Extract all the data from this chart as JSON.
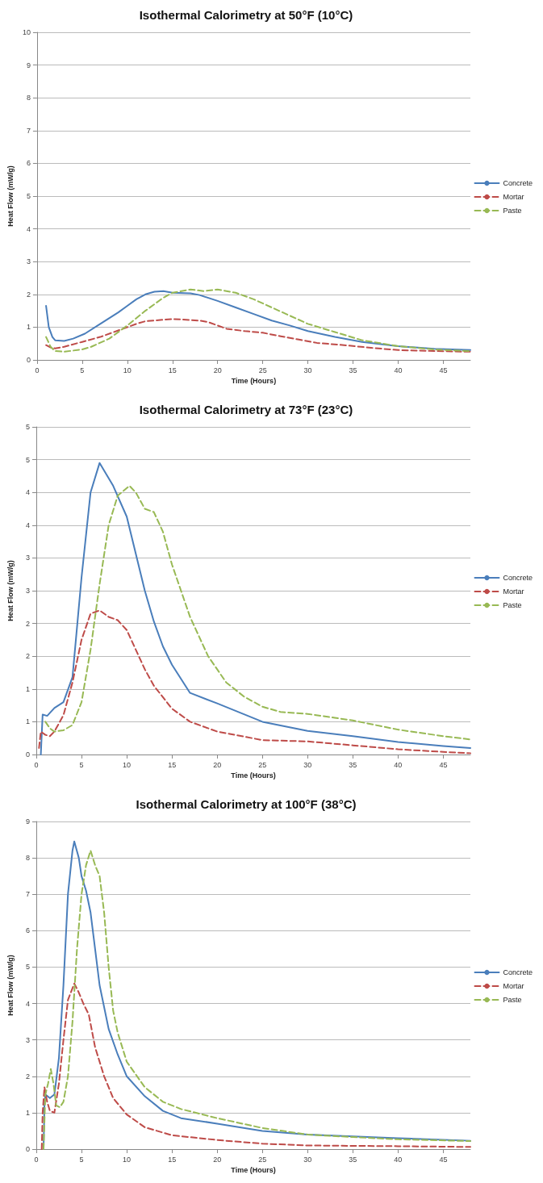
{
  "chart_data": [
    {
      "type": "line",
      "title": "Isothermal Calorimetry at 50°F (10°C)",
      "xlabel": "Time (Hours)",
      "ylabel": "Heat Flow (mW/g)",
      "xlim": [
        0,
        48
      ],
      "xticks": [
        0,
        5,
        10,
        15,
        20,
        25,
        30,
        35,
        40,
        45
      ],
      "ylim": [
        0,
        10
      ],
      "yticks": [
        0,
        1,
        2,
        3,
        4,
        5,
        6,
        7,
        8,
        9,
        10
      ],
      "grid": "y",
      "legend": "right",
      "marker": "none",
      "series": [
        {
          "name": "Concrete",
          "color": "#4a7ebb",
          "line_style": "solid",
          "x": [
            1,
            1.3,
            1.7,
            2,
            3,
            4,
            5.3,
            7,
            9,
            10,
            11,
            12,
            13,
            14,
            15,
            17,
            18,
            20,
            22,
            24,
            26,
            28,
            30,
            33,
            36,
            40,
            44,
            48
          ],
          "values": [
            1.65,
            1.0,
            0.7,
            0.6,
            0.58,
            0.65,
            0.8,
            1.1,
            1.45,
            1.65,
            1.85,
            2.0,
            2.08,
            2.1,
            2.05,
            2.03,
            1.98,
            1.8,
            1.6,
            1.4,
            1.2,
            1.05,
            0.88,
            0.7,
            0.55,
            0.42,
            0.34,
            0.3
          ]
        },
        {
          "name": "Mortar",
          "color": "#be4b48",
          "line_style": "dashed",
          "x": [
            1,
            1.5,
            2,
            3,
            5,
            7,
            9,
            11,
            12,
            15,
            18,
            19,
            20,
            21,
            23,
            25,
            27,
            29,
            31,
            34,
            37,
            40,
            44,
            48
          ],
          "values": [
            0.45,
            0.38,
            0.35,
            0.4,
            0.55,
            0.7,
            0.9,
            1.1,
            1.18,
            1.25,
            1.2,
            1.15,
            1.05,
            0.95,
            0.88,
            0.83,
            0.72,
            0.62,
            0.52,
            0.45,
            0.37,
            0.3,
            0.27,
            0.25
          ]
        },
        {
          "name": "Paste",
          "color": "#98b954",
          "line_style": "dashed",
          "x": [
            1,
            1.5,
            2,
            3,
            5,
            6,
            8,
            10,
            12,
            14,
            15,
            17,
            18.5,
            20,
            22,
            24,
            26,
            28,
            30,
            33,
            36,
            40,
            44,
            48
          ],
          "values": [
            0.7,
            0.4,
            0.27,
            0.25,
            0.32,
            0.4,
            0.65,
            1.05,
            1.5,
            1.9,
            2.05,
            2.15,
            2.1,
            2.15,
            2.05,
            1.85,
            1.6,
            1.35,
            1.1,
            0.85,
            0.6,
            0.42,
            0.32,
            0.27
          ]
        }
      ]
    },
    {
      "type": "line",
      "title": "Isothermal Calorimetry at 73°F (23°C)",
      "xlabel": "Time (Hours)",
      "ylabel": "Heat Flow (mW/g)",
      "xlim": [
        0,
        48
      ],
      "xticks": [
        0,
        5,
        10,
        15,
        20,
        25,
        30,
        35,
        40,
        45
      ],
      "ylim": [
        0,
        5
      ],
      "yticks": [
        0,
        {
          "value": 0.5,
          "label": "1"
        },
        1,
        {
          "value": 1.5,
          "label": "2"
        },
        2,
        {
          "value": 2.5,
          "label": "3"
        },
        3,
        {
          "value": 3.5,
          "label": "4"
        },
        4,
        {
          "value": 4.5,
          "label": "5"
        },
        5
      ],
      "grid": "y",
      "legend": "right",
      "marker": "none",
      "series": [
        {
          "name": "Concrete",
          "color": "#4a7ebb",
          "line_style": "solid",
          "x": [
            0.5,
            0.7,
            1.2,
            2,
            3,
            4,
            5,
            6,
            7,
            8.5,
            10,
            12,
            13,
            14,
            15,
            17,
            20,
            25,
            30,
            35,
            40,
            45,
            48
          ],
          "values": [
            0,
            0.61,
            0.59,
            0.71,
            0.8,
            1.18,
            2.7,
            4.0,
            4.45,
            4.1,
            3.63,
            2.5,
            2.03,
            1.65,
            1.37,
            0.94,
            0.78,
            0.5,
            0.36,
            0.28,
            0.19,
            0.13,
            0.1
          ]
        },
        {
          "name": "Mortar",
          "color": "#be4b48",
          "line_style": "dashed",
          "x": [
            0.3,
            0.5,
            1,
            1.5,
            2,
            3,
            4,
            5,
            6,
            7,
            8,
            9,
            10,
            11,
            12,
            13,
            15,
            17,
            20,
            25,
            30,
            35,
            40,
            45,
            48
          ],
          "values": [
            0.1,
            0.35,
            0.3,
            0.28,
            0.35,
            0.6,
            1.1,
            1.75,
            2.15,
            2.2,
            2.1,
            2.05,
            1.9,
            1.6,
            1.3,
            1.05,
            0.7,
            0.5,
            0.35,
            0.22,
            0.2,
            0.14,
            0.08,
            0.04,
            0.02
          ]
        },
        {
          "name": "Paste",
          "color": "#98b954",
          "line_style": "dashed",
          "x": [
            1,
            1.5,
            2,
            3,
            4,
            5,
            6,
            7,
            8,
            9,
            10.3,
            11,
            12,
            13,
            14,
            15,
            16,
            17,
            19,
            21,
            23,
            25,
            27,
            30,
            33,
            35,
            40,
            45,
            48
          ],
          "values": [
            0.5,
            0.4,
            0.35,
            0.37,
            0.45,
            0.8,
            1.6,
            2.6,
            3.5,
            3.95,
            4.1,
            4.0,
            3.75,
            3.7,
            3.4,
            2.9,
            2.5,
            2.1,
            1.5,
            1.1,
            0.88,
            0.73,
            0.65,
            0.62,
            0.56,
            0.52,
            0.38,
            0.28,
            0.23
          ]
        }
      ]
    },
    {
      "type": "line",
      "title": "Isothermal Calorimetry at 100°F (38°C)",
      "xlabel": "Time (Hours)",
      "ylabel": "Heat Flow (mW/g)",
      "xlim": [
        0,
        48
      ],
      "xticks": [
        0,
        5,
        10,
        15,
        20,
        25,
        30,
        35,
        40,
        45
      ],
      "ylim": [
        0,
        9
      ],
      "yticks": [
        0,
        1,
        2,
        3,
        4,
        5,
        6,
        7,
        8,
        9
      ],
      "grid": "y",
      "legend": "right",
      "marker": "none",
      "series": [
        {
          "name": "Concrete",
          "color": "#4a7ebb",
          "line_style": "solid",
          "x": [
            0.8,
            0.9,
            1,
            1.5,
            2,
            2.5,
            3,
            3.5,
            4,
            4.2,
            4.7,
            5,
            5.5,
            6,
            6.5,
            7,
            8,
            9,
            10,
            12,
            14,
            16,
            20,
            25,
            30,
            35,
            40,
            48
          ],
          "values": [
            0,
            1.2,
            1.5,
            1.4,
            1.5,
            2.5,
            4.5,
            7,
            8.2,
            8.45,
            8.0,
            7.5,
            7.1,
            6.5,
            5.5,
            4.5,
            3.3,
            2.6,
            2.0,
            1.45,
            1.05,
            0.85,
            0.7,
            0.5,
            0.4,
            0.35,
            0.3,
            0.23
          ]
        },
        {
          "name": "Mortar",
          "color": "#be4b48",
          "line_style": "dashed",
          "x": [
            0.6,
            0.7,
            0.9,
            1.2,
            1.5,
            2,
            2.5,
            3,
            3.5,
            4.2,
            4.7,
            5.2,
            5.8,
            6.5,
            7.5,
            8.5,
            10,
            12,
            15,
            20,
            25,
            30,
            40,
            48
          ],
          "values": [
            0,
            1.0,
            1.7,
            1.3,
            1.05,
            1.0,
            1.8,
            3.0,
            4.1,
            4.55,
            4.3,
            4.0,
            3.7,
            2.8,
            2.0,
            1.4,
            0.95,
            0.6,
            0.38,
            0.25,
            0.15,
            0.1,
            0.08,
            0.06
          ]
        },
        {
          "name": "Paste",
          "color": "#98b954",
          "line_style": "dashed",
          "x": [
            0.8,
            1,
            1.3,
            1.6,
            1.9,
            2.2,
            2.6,
            3,
            3.5,
            4,
            4.5,
            5,
            5.5,
            6,
            6.5,
            7,
            7.5,
            8,
            8.5,
            9,
            10,
            12,
            14,
            16,
            20,
            25,
            30,
            35,
            40,
            48
          ],
          "values": [
            0,
            1.5,
            1.8,
            2.2,
            1.8,
            1.2,
            1.15,
            1.3,
            2.0,
            3.5,
            5.5,
            7.0,
            7.8,
            8.2,
            7.8,
            7.5,
            6.5,
            5.0,
            3.8,
            3.2,
            2.4,
            1.7,
            1.3,
            1.1,
            0.85,
            0.58,
            0.4,
            0.33,
            0.27,
            0.22
          ]
        }
      ]
    }
  ]
}
